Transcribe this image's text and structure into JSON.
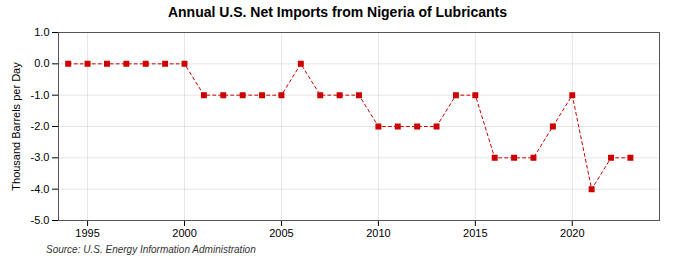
{
  "chart_data": {
    "type": "line",
    "title": "Annual U.S. Net Imports from Nigeria of Lubricants",
    "ylabel": "Thousand Barrels per Day",
    "source": "Source: U.S. Energy Information Administration",
    "x": [
      1994,
      1995,
      1996,
      1997,
      1998,
      1999,
      2000,
      2001,
      2002,
      2003,
      2004,
      2005,
      2006,
      2007,
      2008,
      2009,
      2010,
      2011,
      2012,
      2013,
      2014,
      2015,
      2016,
      2017,
      2018,
      2019,
      2020,
      2021,
      2022,
      2023
    ],
    "values": [
      0,
      0,
      0,
      0,
      0,
      0,
      0,
      -1,
      -1,
      -1,
      -1,
      -1,
      0,
      -1,
      -1,
      -1,
      -2,
      -2,
      -2,
      -2,
      -1,
      -1,
      -3,
      -3,
      -3,
      -2,
      -1,
      -4,
      -3,
      -3
    ],
    "color": "#cc0000",
    "marker": "square",
    "line_style": "dashed",
    "xlim": [
      1993.5,
      2024.5
    ],
    "ylim": [
      -5.0,
      1.0
    ],
    "xticks": [
      1995,
      2000,
      2005,
      2010,
      2015,
      2020
    ],
    "yticks": [
      {
        "value": 1.0,
        "label": "1.0"
      },
      {
        "value": 0.0,
        "label": "0.0"
      },
      {
        "value": -1.0,
        "label": "-1.0"
      },
      {
        "value": -2.0,
        "label": "-2.0"
      },
      {
        "value": -3.0,
        "label": "-3.0"
      },
      {
        "value": -4.0,
        "label": "-4.0"
      },
      {
        "value": -5.0,
        "label": "-5.0"
      }
    ],
    "grid": true
  }
}
